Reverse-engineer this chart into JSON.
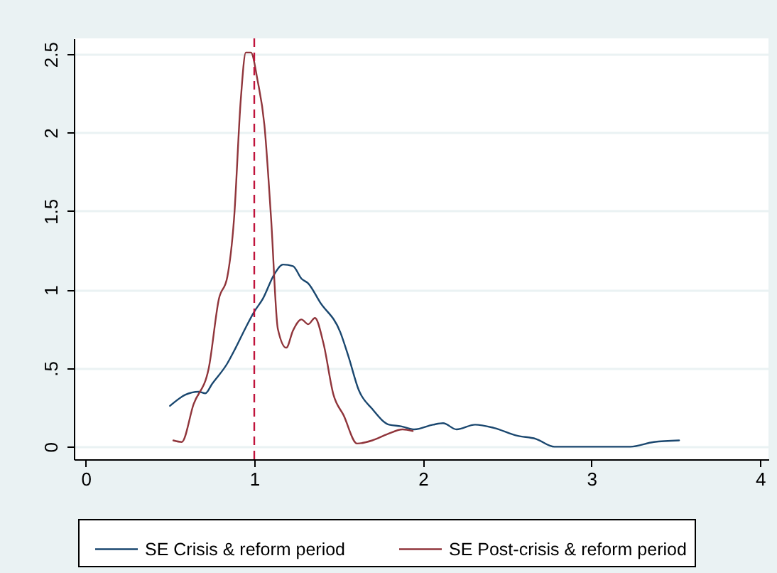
{
  "chart_data": {
    "type": "line",
    "xlim": [
      -0.07,
      4.05
    ],
    "ylim": [
      -0.08,
      2.6
    ],
    "xticks": [
      0,
      1,
      2,
      3,
      4
    ],
    "yticks": [
      0,
      {
        "value": 0.5,
        "label": ".5"
      },
      1,
      1.5,
      2,
      2.5
    ],
    "grid": "y",
    "legend": "bottom",
    "series": [
      {
        "name": "SE Crisis & reform period",
        "color": "#1a476f",
        "x": [
          0.5,
          0.59,
          0.67,
          0.71,
          0.75,
          0.84,
          0.89,
          0.95,
          1.0,
          1.05,
          1.12,
          1.17,
          1.23,
          1.28,
          1.32,
          1.39,
          1.51,
          1.56,
          1.62,
          1.7,
          1.8,
          1.87,
          1.95,
          2.06,
          2.12,
          2.2,
          2.31,
          2.42,
          2.56,
          2.67,
          2.78,
          3.23,
          3.37,
          3.52
        ],
        "values": [
          0.26,
          0.33,
          0.35,
          0.34,
          0.4,
          0.53,
          0.63,
          0.76,
          0.86,
          0.94,
          1.1,
          1.16,
          1.15,
          1.07,
          1.04,
          0.92,
          0.73,
          0.57,
          0.36,
          0.24,
          0.14,
          0.13,
          0.11,
          0.14,
          0.15,
          0.11,
          0.14,
          0.12,
          0.07,
          0.05,
          0,
          0,
          0.03,
          0.04
        ]
      },
      {
        "name": "SE Post-crisis & reform period",
        "color": "#90353b",
        "x": [
          0.52,
          0.57,
          0.64,
          0.73,
          0.79,
          0.84,
          0.88,
          0.92,
          0.95,
          0.98,
          1.02,
          1.06,
          1.1,
          1.14,
          1.19,
          1.23,
          1.28,
          1.32,
          1.36,
          1.41,
          1.47,
          1.53,
          1.61,
          1.7,
          1.79,
          1.88,
          1.94
        ],
        "values": [
          0.04,
          0.03,
          0.27,
          0.5,
          0.94,
          1.08,
          1.45,
          2.21,
          2.51,
          2.51,
          2.33,
          2.05,
          1.45,
          0.75,
          0.63,
          0.74,
          0.81,
          0.78,
          0.82,
          0.66,
          0.33,
          0.2,
          0.02,
          0.04,
          0.08,
          0.11,
          0.1
        ]
      }
    ],
    "ref_lines": [
      {
        "axis": "x",
        "value": 1,
        "color": "#c0143c",
        "line_style": "dashed"
      }
    ]
  }
}
